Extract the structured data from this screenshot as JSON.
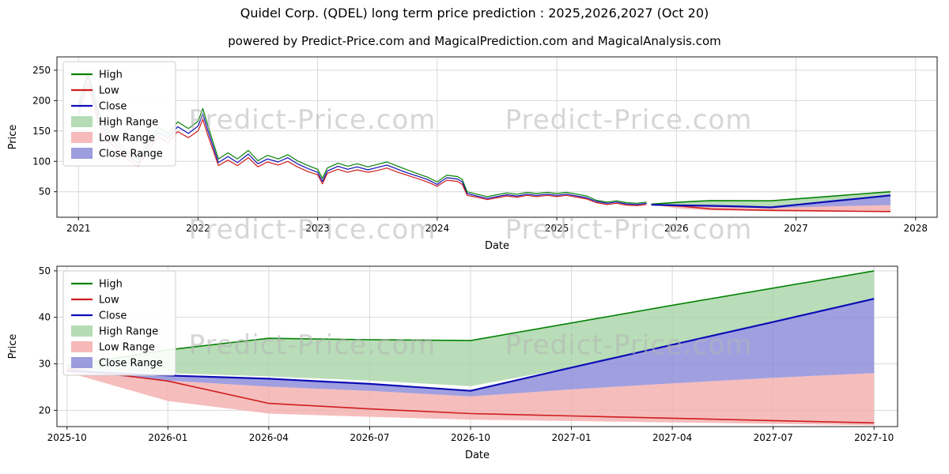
{
  "header": {
    "title": "Quidel Corp. (QDEL) long term price prediction : 2025,2026,2027 (Oct 20)",
    "subtitle": "powered by Predict-Price.com and MagicalPrediction.com and MagicalAnalysis.com"
  },
  "watermark_text": "Predict-Price.com",
  "colors": {
    "high_line": "#068206",
    "low_line": "#cf1d1d",
    "close_line": "#0d0db5",
    "high_range_fill": "#a8d6a8",
    "low_range_fill": "#f4aeae",
    "close_range_fill": "#8b8bd9",
    "grid": "#d8d8d8"
  },
  "legend": [
    {
      "label": "High",
      "kind": "line",
      "color_key": "high_line"
    },
    {
      "label": "Low",
      "kind": "line",
      "color_key": "low_line"
    },
    {
      "label": "Close",
      "kind": "line",
      "color_key": "close_line"
    },
    {
      "label": "High Range",
      "kind": "patch",
      "color_key": "high_range_fill"
    },
    {
      "label": "Low Range",
      "kind": "patch",
      "color_key": "low_range_fill"
    },
    {
      "label": "Close Range",
      "kind": "patch",
      "color_key": "close_range_fill"
    }
  ],
  "chart_data": [
    {
      "type": "line",
      "title": "Historical prices 2021-2025 with prediction ranges to 2028",
      "xlabel": "Date",
      "ylabel": "Price",
      "xlim": [
        2020.82,
        2028.18
      ],
      "ylim": [
        8,
        272
      ],
      "xticks": [
        2021,
        2022,
        2023,
        2024,
        2025,
        2026,
        2027,
        2028
      ],
      "yticks": [
        50,
        100,
        150,
        200,
        250
      ],
      "grid": true,
      "legend_position": "upper-left",
      "history": {
        "x": [
          2021.0,
          2021.08,
          2021.17,
          2021.25,
          2021.33,
          2021.42,
          2021.5,
          2021.58,
          2021.67,
          2021.75,
          2021.83,
          2021.92,
          2022.0,
          2022.04,
          2022.08,
          2022.17,
          2022.25,
          2022.33,
          2022.42,
          2022.5,
          2022.58,
          2022.67,
          2022.75,
          2022.83,
          2022.92,
          2023.0,
          2023.04,
          2023.08,
          2023.17,
          2023.25,
          2023.33,
          2023.42,
          2023.5,
          2023.58,
          2023.67,
          2023.75,
          2023.83,
          2023.92,
          2024.0,
          2024.04,
          2024.08,
          2024.17,
          2024.21,
          2024.25,
          2024.33,
          2024.42,
          2024.5,
          2024.58,
          2024.67,
          2024.75,
          2024.83,
          2024.92,
          2025.0,
          2025.08,
          2025.17,
          2025.25,
          2025.33,
          2025.42,
          2025.5,
          2025.58,
          2025.67,
          2025.75
        ],
        "high": [
          194,
          248,
          180,
          148,
          131,
          114,
          103,
          132,
          156,
          145,
          165,
          154,
          166,
          187,
          160,
          104,
          114,
          104,
          118,
          101,
          110,
          104,
          111,
          101,
          93,
          87,
          72,
          89,
          97,
          92,
          96,
          91,
          95,
          99,
          92,
          86,
          80,
          74,
          66,
          72,
          77,
          75,
          70,
          50,
          46,
          42,
          45,
          48,
          46,
          49,
          47,
          49,
          47,
          49,
          46,
          43,
          36,
          33,
          35,
          32,
          31,
          33
        ],
        "low": [
          176,
          228,
          161,
          133,
          119,
          102,
          92,
          118,
          140,
          131,
          149,
          139,
          150,
          169,
          144,
          93,
          102,
          93,
          106,
          91,
          99,
          94,
          100,
          91,
          83,
          78,
          63,
          80,
          87,
          82,
          86,
          82,
          85,
          89,
          82,
          77,
          72,
          66,
          59,
          64,
          69,
          67,
          62,
          44,
          41,
          37,
          40,
          43,
          41,
          44,
          42,
          44,
          42,
          44,
          41,
          38,
          32,
          29,
          31,
          28,
          27,
          29
        ],
        "close": [
          185,
          240,
          170,
          140,
          125,
          108,
          97,
          125,
          148,
          138,
          157,
          146,
          158,
          178,
          152,
          98,
          108,
          98,
          112,
          96,
          104,
          99,
          106,
          96,
          88,
          82,
          67,
          84,
          92,
          87,
          91,
          86,
          90,
          94,
          87,
          81,
          76,
          70,
          62,
          68,
          73,
          71,
          66,
          47,
          43,
          39,
          42,
          45,
          43,
          46,
          44,
          46,
          44,
          46,
          43,
          40,
          34,
          31,
          33,
          30,
          29,
          31
        ]
      },
      "forecast": {
        "x": [
          2025.79,
          2026.04,
          2026.29,
          2026.54,
          2026.79,
          2027.04,
          2027.29,
          2027.54,
          2027.79
        ],
        "high": [
          29.6,
          33.0,
          35.5,
          35.2,
          35.0,
          38.8,
          42.6,
          46.3,
          50.0
        ],
        "low": [
          29.0,
          26.3,
          21.5,
          20.3,
          19.3,
          18.8,
          18.3,
          17.8,
          17.3
        ],
        "close": [
          28.5,
          27.5,
          26.8,
          25.7,
          24.2,
          29.2,
          34.1,
          39.0,
          44.0
        ],
        "high_range_lower": [
          28.8,
          28.0,
          27.3,
          26.4,
          25.2,
          29.2,
          34.1,
          39.0,
          44.0
        ],
        "low_range_upper": [
          28.8,
          26.4,
          25.1,
          24.2,
          23.0,
          24.5,
          25.8,
          27.0,
          28.0
        ],
        "low_range_lower": [
          28.2,
          22.0,
          19.3,
          18.6,
          18.0,
          17.7,
          17.4,
          17.1,
          16.8
        ],
        "close_range_lower": [
          28.4,
          26.4,
          25.1,
          24.2,
          23.0,
          24.5,
          25.8,
          27.0,
          28.0
        ]
      }
    },
    {
      "type": "line",
      "title": "Prediction detail Oct 2025 - Oct 2027",
      "xlabel": "Date",
      "ylabel": "Price",
      "xlim": [
        -0.3,
        24.7
      ],
      "ylim": [
        16.5,
        51
      ],
      "xticks": [
        0,
        3,
        6,
        9,
        12,
        15,
        18,
        21,
        24
      ],
      "xtick_labels": [
        "2025-10",
        "2026-01",
        "2026-04",
        "2026-07",
        "2026-10",
        "2027-01",
        "2027-04",
        "2027-07",
        "2027-10"
      ],
      "yticks": [
        20,
        30,
        40,
        50
      ],
      "grid": true,
      "legend_position": "upper-left",
      "forecast": {
        "x": [
          0,
          3,
          6,
          9,
          12,
          15,
          18,
          21,
          24
        ],
        "high": [
          29.6,
          33.0,
          35.5,
          35.2,
          35.0,
          38.8,
          42.6,
          46.3,
          50.0
        ],
        "low": [
          29.0,
          26.3,
          21.5,
          20.3,
          19.3,
          18.8,
          18.3,
          17.8,
          17.3
        ],
        "close": [
          28.5,
          27.5,
          26.8,
          25.7,
          24.2,
          29.2,
          34.1,
          39.0,
          44.0
        ],
        "high_range_lower": [
          28.8,
          28.0,
          27.3,
          26.4,
          25.2,
          29.2,
          34.1,
          39.0,
          44.0
        ],
        "low_range_upper": [
          28.8,
          26.4,
          25.1,
          24.2,
          23.0,
          24.5,
          25.8,
          27.0,
          28.0
        ],
        "low_range_lower": [
          28.2,
          22.0,
          19.3,
          18.6,
          18.0,
          17.7,
          17.4,
          17.1,
          16.8
        ],
        "close_range_lower": [
          28.4,
          26.4,
          25.1,
          24.2,
          23.0,
          24.5,
          25.8,
          27.0,
          28.0
        ]
      }
    }
  ]
}
